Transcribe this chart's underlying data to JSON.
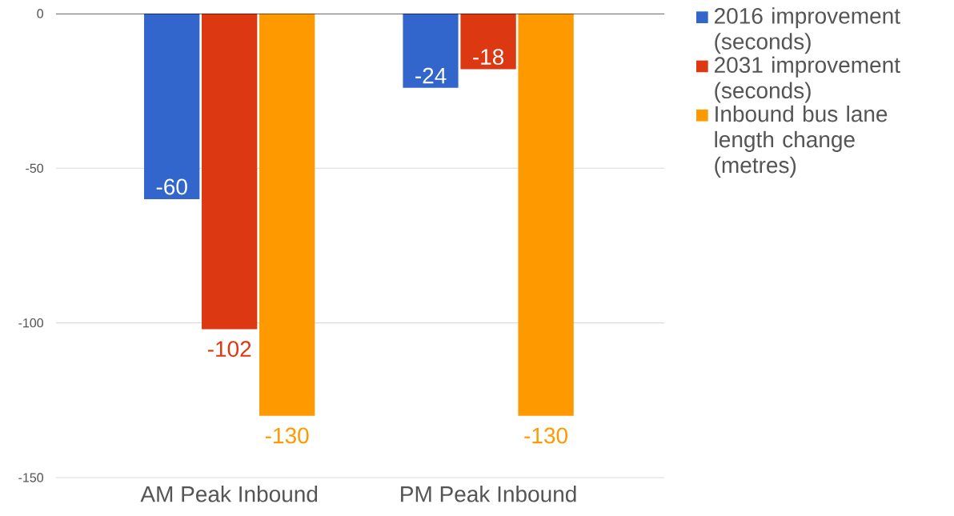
{
  "chart_data": {
    "type": "bar",
    "categories": [
      "AM Peak Inbound",
      "PM Peak Inbound"
    ],
    "series": [
      {
        "name": "2016 improvement (seconds)",
        "color": "#3366cc",
        "values": [
          -60,
          -24
        ]
      },
      {
        "name": "2031 improvement (seconds)",
        "color": "#dc3912",
        "values": [
          -102,
          -18
        ]
      },
      {
        "name": "Inbound bus lane length change (metres)",
        "color": "#ff9900",
        "values": [
          -130,
          -130
        ]
      }
    ],
    "ylim": [
      -150,
      0
    ],
    "yticks": [
      -150,
      -100,
      -50,
      0
    ],
    "grid": "y",
    "legend": "top right",
    "data_labels": true
  }
}
